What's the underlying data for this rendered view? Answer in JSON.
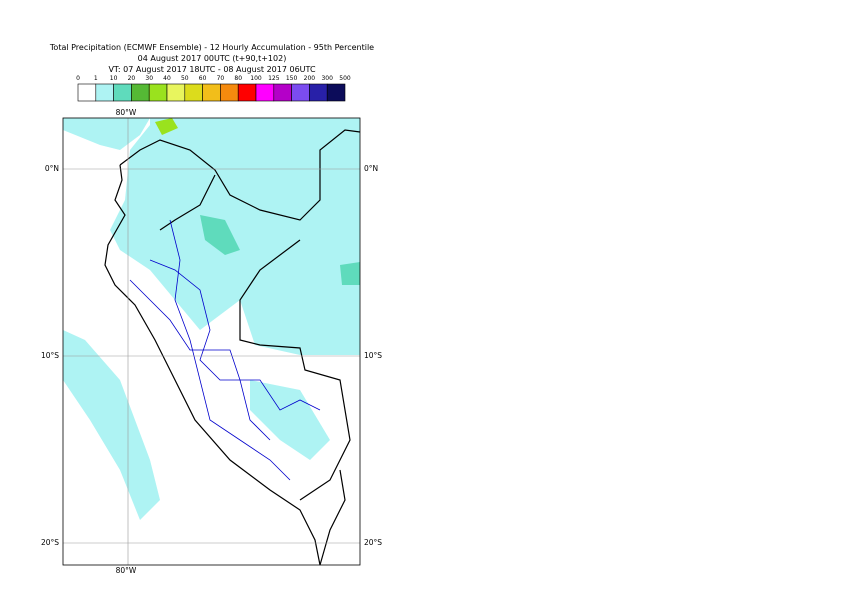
{
  "header": {
    "title": "Total Precipitation (ECMWF Ensemble) - 12 Hourly Accumulation - 95th Percentile",
    "subtitle": "04 August 2017 00UTC (t+90,t+102)",
    "valid_time": "VT: 07 August 2017 18UTC - 08 August 2017 06UTC"
  },
  "legend": {
    "ticks": [
      0,
      1,
      10,
      20,
      30,
      40,
      50,
      60,
      70,
      80,
      100,
      125,
      150,
      200,
      300,
      500
    ],
    "colors": [
      "#ffffff",
      "#aef3f3",
      "#5fdbbc",
      "#55b935",
      "#9ae21e",
      "#e8f55e",
      "#dcdc1c",
      "#f2be1a",
      "#f58a0e",
      "#ff0000",
      "#ff00ff",
      "#b400c8",
      "#7b4cf0",
      "#2820a8",
      "#0c0c5a"
    ]
  },
  "map": {
    "lon_label": "80°W",
    "lat_labels": [
      "0°N",
      "10°S",
      "20°S"
    ]
  }
}
